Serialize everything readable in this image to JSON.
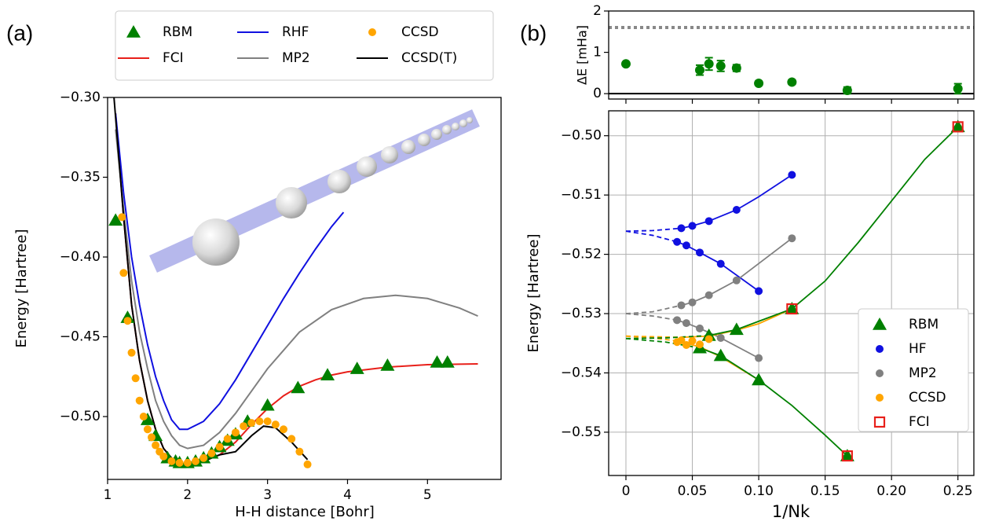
{
  "chart_data": [
    {
      "type": "line",
      "panel": "(a)",
      "xlabel": "H-H distance [Bohr]",
      "ylabel": "Energy [Hartree]",
      "xlim": [
        1,
        5.92
      ],
      "ylim": [
        -0.5394,
        -0.3
      ],
      "xticks": [
        1,
        2,
        3,
        4,
        5
      ],
      "yticks": [
        {
          "value": -0.5,
          "label": "−0.50"
        },
        {
          "value": -0.45,
          "label": "−0.45"
        },
        {
          "value": -0.4,
          "label": "−0.40"
        },
        {
          "value": -0.35,
          "label": "−0.35"
        },
        {
          "value": -0.3,
          "label": "−0.30"
        }
      ],
      "grid": false,
      "legend": "above",
      "series": [
        {
          "name": "RBM",
          "type": "scatter",
          "marker": "triangle",
          "color": "#008000",
          "x": [
            1.1,
            1.25,
            1.5,
            1.6,
            1.75,
            1.85,
            1.9,
            2.0,
            2.1,
            2.2,
            2.3,
            2.4,
            2.5,
            2.6,
            2.75,
            3.0,
            3.38,
            3.75,
            4.12,
            4.5,
            5.12,
            5.25
          ],
          "values": [
            -0.377,
            -0.438,
            -0.502,
            -0.512,
            -0.526,
            -0.528,
            -0.529,
            -0.529,
            -0.528,
            -0.526,
            -0.523,
            -0.519,
            -0.515,
            -0.511,
            -0.503,
            -0.493,
            -0.482,
            -0.474,
            -0.47,
            -0.468,
            -0.466,
            -0.466
          ]
        },
        {
          "name": "FCI",
          "type": "line",
          "color": "#e8201a",
          "x": [
            1.1,
            1.2,
            1.3,
            1.4,
            1.5,
            1.6,
            1.7,
            1.8,
            1.9,
            2.0,
            2.2,
            2.4,
            2.6,
            2.8,
            3.0,
            3.2,
            3.4,
            3.6,
            3.8,
            4.0,
            4.5,
            5.0,
            5.63
          ],
          "values": [
            -0.31,
            -0.375,
            -0.43,
            -0.465,
            -0.49,
            -0.508,
            -0.52,
            -0.526,
            -0.529,
            -0.53,
            -0.528,
            -0.524,
            -0.516,
            -0.505,
            -0.495,
            -0.487,
            -0.481,
            -0.477,
            -0.474,
            -0.472,
            -0.469,
            -0.4675,
            -0.467
          ]
        },
        {
          "name": "RHF",
          "type": "line",
          "color": "#1010e0",
          "x": [
            1.1,
            1.2,
            1.3,
            1.4,
            1.5,
            1.6,
            1.7,
            1.8,
            1.9,
            2.0,
            2.2,
            2.4,
            2.6,
            2.8,
            3.0,
            3.2,
            3.4,
            3.6,
            3.8,
            3.95
          ],
          "values": [
            -0.31,
            -0.36,
            -0.4,
            -0.43,
            -0.455,
            -0.475,
            -0.49,
            -0.502,
            -0.508,
            -0.508,
            -0.503,
            -0.492,
            -0.477,
            -0.46,
            -0.443,
            -0.426,
            -0.41,
            -0.395,
            -0.381,
            -0.372
          ]
        },
        {
          "name": "MP2",
          "type": "line",
          "color": "#808080",
          "x": [
            1.1,
            1.2,
            1.3,
            1.4,
            1.5,
            1.6,
            1.7,
            1.8,
            1.9,
            2.0,
            2.2,
            2.4,
            2.6,
            2.8,
            3.0,
            3.4,
            3.8,
            4.2,
            4.6,
            5.0,
            5.4,
            5.63
          ],
          "values": [
            -0.32,
            -0.37,
            -0.415,
            -0.447,
            -0.47,
            -0.49,
            -0.503,
            -0.512,
            -0.518,
            -0.52,
            -0.518,
            -0.51,
            -0.498,
            -0.484,
            -0.47,
            -0.447,
            -0.433,
            -0.426,
            -0.424,
            -0.426,
            -0.432,
            -0.437
          ]
        },
        {
          "name": "CCSD",
          "type": "scatter",
          "marker": "circle",
          "color": "#ffa500",
          "x": [
            1.18,
            1.2,
            1.25,
            1.3,
            1.35,
            1.4,
            1.45,
            1.5,
            1.55,
            1.6,
            1.65,
            1.7,
            1.8,
            1.9,
            2.0,
            2.1,
            2.2,
            2.3,
            2.4,
            2.5,
            2.6,
            2.7,
            2.8,
            2.9,
            3.0,
            3.1,
            3.2,
            3.3,
            3.4,
            3.5
          ],
          "values": [
            -0.375,
            -0.41,
            -0.44,
            -0.46,
            -0.476,
            -0.49,
            -0.5,
            -0.508,
            -0.513,
            -0.518,
            -0.522,
            -0.525,
            -0.528,
            -0.529,
            -0.529,
            -0.528,
            -0.526,
            -0.523,
            -0.519,
            -0.514,
            -0.51,
            -0.506,
            -0.504,
            -0.503,
            -0.503,
            -0.505,
            -0.508,
            -0.514,
            -0.522,
            -0.53
          ]
        },
        {
          "name": "CCSD(T)",
          "type": "line",
          "color": "#000000",
          "x": [
            1.08,
            1.2,
            1.3,
            1.4,
            1.5,
            1.6,
            1.7,
            1.8,
            1.9,
            2.0,
            2.2,
            2.4,
            2.6,
            2.8,
            2.95,
            3.1,
            3.3,
            3.5
          ],
          "values": [
            -0.3,
            -0.375,
            -0.43,
            -0.465,
            -0.49,
            -0.508,
            -0.52,
            -0.526,
            -0.529,
            -0.53,
            -0.528,
            -0.524,
            -0.522,
            -0.512,
            -0.506,
            -0.507,
            -0.516,
            -0.527
          ]
        }
      ]
    },
    {
      "type": "scatter",
      "panel": "(b)",
      "ylabel": "ΔE [mHa]",
      "xlim": [
        -0.013,
        0.262
      ],
      "ylim": [
        -0.13,
        2
      ],
      "xticks": [
        0,
        0.05,
        0.1,
        0.15,
        0.2,
        0.25
      ],
      "xtick_labels": false,
      "yticks": [
        0,
        1,
        2
      ],
      "grid": false,
      "hlines": [
        {
          "y": 1.6,
          "color": "#888888",
          "style": "dotted"
        },
        {
          "y": 0,
          "color": "#000000",
          "style": "solid"
        }
      ],
      "series": [
        {
          "type": "scatter",
          "marker": "circle",
          "color": "#008000",
          "x": [
            0,
            0.0556,
            0.0625,
            0.0714,
            0.0833,
            0.1,
            0.125,
            0.1667,
            0.25
          ],
          "values": [
            0.72,
            0.57,
            0.72,
            0.67,
            0.62,
            0.25,
            0.28,
            0.08,
            0.12
          ],
          "errors": [
            0,
            0.12,
            0.15,
            0.13,
            0.08,
            0.04,
            0.04,
            0.08,
            0.12
          ]
        }
      ]
    },
    {
      "type": "line",
      "xlabel": "1/Nk",
      "ylabel": "Energy [Hartree]",
      "xlim": [
        -0.013,
        0.262
      ],
      "ylim": [
        -0.5573,
        -0.4958
      ],
      "xticks": [
        0,
        0.05,
        {
          "value": 0.1,
          "label": "0.10"
        },
        0.15,
        {
          "value": 0.2,
          "label": "0.20"
        },
        0.25
      ],
      "yticks": [
        {
          "value": -0.55,
          "label": "−0.55"
        },
        {
          "value": -0.54,
          "label": "−0.54"
        },
        {
          "value": -0.53,
          "label": "−0.53"
        },
        {
          "value": -0.52,
          "label": "−0.52"
        },
        {
          "value": -0.51,
          "label": "−0.51"
        },
        {
          "value": -0.5,
          "label": "−0.50"
        }
      ],
      "grid": true,
      "legend": "lower right",
      "series": [
        {
          "type": "line",
          "dashed": true,
          "color": "#1010e0",
          "x": [
            0,
            0.02,
            0.0417
          ],
          "values": [
            -0.5161,
            -0.516,
            -0.5156
          ]
        },
        {
          "type": "line",
          "color": "#1010e0",
          "x": [
            0.0417,
            0.05,
            0.0625,
            0.0833,
            0.1,
            0.125
          ],
          "values": [
            -0.5156,
            -0.5152,
            -0.5144,
            -0.5125,
            -0.5103,
            -0.5066
          ]
        },
        {
          "type": "line",
          "dashed": true,
          "color": "#1010e0",
          "x": [
            0,
            0.02,
            0.0385
          ],
          "values": [
            -0.5161,
            -0.5168,
            -0.5179
          ]
        },
        {
          "type": "line",
          "color": "#1010e0",
          "x": [
            0.0385,
            0.0455,
            0.0556,
            0.0714,
            0.1
          ],
          "values": [
            -0.5179,
            -0.5185,
            -0.5197,
            -0.5216,
            -0.5262
          ]
        },
        {
          "type": "line",
          "dashed": true,
          "color": "#808080",
          "x": [
            0,
            0.02,
            0.0417
          ],
          "values": [
            -0.53,
            -0.5297,
            -0.5286
          ]
        },
        {
          "type": "line",
          "color": "#808080",
          "x": [
            0.0417,
            0.05,
            0.0625,
            0.0833,
            0.125
          ],
          "values": [
            -0.5286,
            -0.5281,
            -0.5269,
            -0.5244,
            -0.5173
          ]
        },
        {
          "type": "line",
          "dashed": true,
          "color": "#808080",
          "x": [
            0,
            0.02,
            0.0385
          ],
          "values": [
            -0.53,
            -0.5304,
            -0.5311
          ]
        },
        {
          "type": "line",
          "color": "#808080",
          "x": [
            0.0385,
            0.0455,
            0.0556,
            0.0714,
            0.1
          ],
          "values": [
            -0.5311,
            -0.5316,
            -0.5325,
            -0.5341,
            -0.5375
          ]
        },
        {
          "type": "line",
          "dashed": true,
          "color": "#ffa500",
          "x": [
            0,
            0.02,
            0.0417
          ],
          "values": [
            -0.5338,
            -0.5339,
            -0.534
          ]
        },
        {
          "type": "line",
          "color": "#ffa500",
          "x": [
            0.0417,
            0.0625,
            0.0833,
            0.1,
            0.125
          ],
          "values": [
            -0.534,
            -0.5338,
            -0.5328,
            -0.5317,
            -0.5292
          ]
        },
        {
          "type": "line",
          "dashed": true,
          "color": "#ffa500",
          "x": [
            0,
            0.02,
            0.0385
          ],
          "values": [
            -0.5338,
            -0.5341,
            -0.5346
          ]
        },
        {
          "type": "line",
          "color": "#ffa500",
          "x": [
            0.0385,
            0.0556,
            0.0714,
            0.1
          ],
          "values": [
            -0.5346,
            -0.5356,
            -0.5373,
            -0.5412
          ]
        },
        {
          "type": "line",
          "dashed": true,
          "color": "#008000",
          "x": [
            0,
            0.03,
            0.0625
          ],
          "values": [
            -0.5342,
            -0.5341,
            -0.5337
          ]
        },
        {
          "type": "line",
          "color": "#008000",
          "x": [
            0.0625,
            0.0833,
            0.125,
            0.15,
            0.175,
            0.2,
            0.225,
            0.25
          ],
          "values": [
            -0.5337,
            -0.5327,
            -0.5292,
            -0.5245,
            -0.518,
            -0.511,
            -0.504,
            -0.4985
          ]
        },
        {
          "type": "line",
          "dashed": true,
          "color": "#008000",
          "x": [
            0,
            0.03,
            0.0556
          ],
          "values": [
            -0.5342,
            -0.5348,
            -0.5358
          ]
        },
        {
          "type": "line",
          "color": "#008000",
          "x": [
            0.0556,
            0.0714,
            0.1,
            0.125,
            0.15,
            0.1667
          ],
          "values": [
            -0.5358,
            -0.5371,
            -0.5412,
            -0.5455,
            -0.5505,
            -0.554
          ]
        },
        {
          "name": "RBM",
          "type": "scatter",
          "marker": "triangle",
          "color": "#008000",
          "x": [
            0.0556,
            0.0625,
            0.0714,
            0.0833,
            0.1,
            0.125,
            0.1667,
            0.25
          ],
          "values": [
            -0.5358,
            -0.5337,
            -0.5371,
            -0.5327,
            -0.5412,
            -0.5292,
            -0.554,
            -0.4985
          ]
        },
        {
          "name": "HF",
          "type": "scatter",
          "marker": "circle",
          "color": "#1010e0",
          "x": [
            0.0385,
            0.0417,
            0.0455,
            0.05,
            0.0556,
            0.0625,
            0.0714,
            0.0833,
            0.1,
            0.125
          ],
          "values": [
            -0.5179,
            -0.5156,
            -0.5185,
            -0.5152,
            -0.5197,
            -0.5144,
            -0.5216,
            -0.5125,
            -0.5262,
            -0.5066
          ]
        },
        {
          "name": "MP2",
          "type": "scatter",
          "marker": "circle",
          "color": "#808080",
          "x": [
            0.0385,
            0.0417,
            0.0455,
            0.05,
            0.0556,
            0.0625,
            0.0714,
            0.0833,
            0.1,
            0.125
          ],
          "values": [
            -0.5311,
            -0.5286,
            -0.5316,
            -0.5281,
            -0.5325,
            -0.5269,
            -0.5341,
            -0.5244,
            -0.5375,
            -0.5173
          ]
        },
        {
          "name": "CCSD",
          "type": "scatter",
          "marker": "circle",
          "color": "#ffa500",
          "x": [
            0.0385,
            0.0417,
            0.0455,
            0.05,
            0.0556,
            0.0625
          ],
          "values": [
            -0.5348,
            -0.5345,
            -0.5353,
            -0.5346,
            -0.5352,
            -0.5343
          ]
        },
        {
          "name": "FCI",
          "type": "scatter",
          "marker": "square",
          "color": "#e8201a",
          "x": [
            0.125,
            0.1667,
            0.25
          ],
          "values": [
            -0.5292,
            -0.554,
            -0.4985
          ]
        }
      ]
    }
  ]
}
